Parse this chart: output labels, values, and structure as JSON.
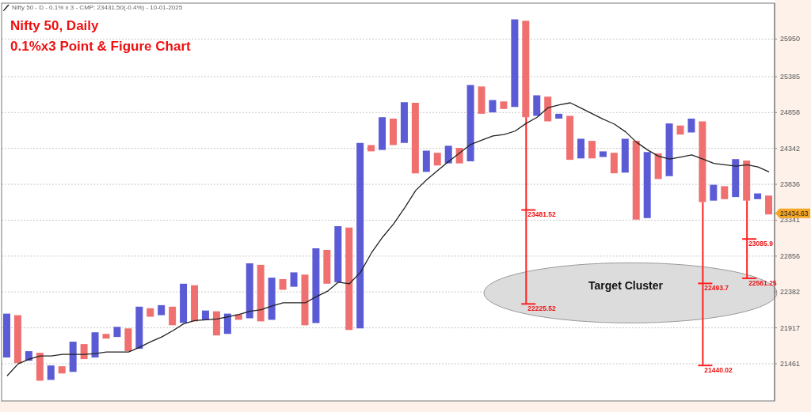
{
  "chart_data": {
    "type": "bar",
    "title": "Nifty 50, Daily",
    "subtitle": "0.1%x3 Point & Figure Chart",
    "categories": [
      null,
      null,
      null,
      null,
      null,
      null,
      null,
      null,
      null,
      null,
      null,
      null,
      null,
      null,
      null,
      null,
      null,
      null,
      null,
      null,
      null,
      null,
      null,
      null,
      null,
      null,
      null,
      null,
      null,
      null,
      null,
      null,
      null,
      null,
      null,
      null,
      null,
      null,
      null,
      null,
      null,
      null,
      null,
      null,
      null,
      null,
      null,
      null,
      null,
      null,
      null,
      null,
      null,
      null,
      null,
      null,
      null,
      null,
      null,
      null,
      null,
      null,
      null,
      null,
      null,
      null,
      null,
      null,
      null,
      null
    ],
    "ylim": [
      21000,
      26500
    ],
    "log": true,
    "yticks": [
      21461,
      21917,
      22382,
      22856,
      23341,
      {
        "value": 23434.63,
        "label": "23434.63"
      },
      23836,
      24342,
      24858,
      25385,
      25950
    ],
    "grid": "y",
    "tick_labels": "y",
    "series": [
      {
        "base": [
          21540,
          21470,
          21500,
          21250,
          21260,
          21340,
          21360,
          21520,
          21540,
          21780,
          21800,
          21620,
          21650,
          22060,
          22080,
          21950,
          21980,
          22000,
          22020,
          21820,
          21840,
          22020,
          22040,
          22000,
          22020,
          22410,
          22450,
          21950,
          21980,
          22490,
          22510,
          21890,
          21910,
          24300,
          24320,
          24390,
          24420,
          23990,
          24010,
          24100,
          24130,
          24130,
          24160,
          24840,
          24860,
          24910,
          24940,
          24790,
          24810,
          24730,
          24770,
          24180,
          24200,
          24200,
          24220,
          23990,
          24000,
          23350,
          23370,
          23910,
          23950,
          24540,
          24570,
          23590,
          23610,
          23630,
          23660,
          23610,
          23630,
          23420
        ],
        "values": [
          560,
          610,
          120,
          350,
          180,
          90,
          380,
          190,
          320,
          60,
          130,
          290,
          540,
          110,
          130,
          240,
          510,
          470,
          120,
          310,
          260,
          70,
          720,
          740,
          550,
          140,
          190,
          660,
          980,
          450,
          750,
          1350,
          2510,
          90,
          470,
          380,
          590,
          1010,
          300,
          180,
          250,
          220,
          1100,
          400,
          180,
          110,
          1310,
          1440,
          300,
          360,
          70,
          630,
          280,
          250,
          80,
          290,
          480,
          1100,
          920,
          360,
          750,
          130,
          200,
          1140,
          220,
          180,
          530,
          560,
          80,
          260
        ],
        "colors": [
          "#5b5bd6",
          "#f07070",
          "#5b5bd6",
          "#f07070",
          "#5b5bd6",
          "#f07070",
          "#5b5bd6",
          "#f07070",
          "#5b5bd6",
          "#f07070",
          "#5b5bd6",
          "#f07070",
          "#5b5bd6",
          "#f07070",
          "#5b5bd6",
          "#f07070",
          "#5b5bd6",
          "#f07070",
          "#5b5bd6",
          "#f07070",
          "#5b5bd6",
          "#f07070",
          "#5b5bd6",
          "#f07070",
          "#5b5bd6",
          "#f07070",
          "#5b5bd6",
          "#f07070",
          "#5b5bd6",
          "#f07070",
          "#5b5bd6",
          "#f07070",
          "#5b5bd6",
          "#f07070",
          "#5b5bd6",
          "#f07070",
          "#5b5bd6",
          "#f07070",
          "#5b5bd6",
          "#f07070",
          "#5b5bd6",
          "#f07070",
          "#5b5bd6",
          "#f07070",
          "#5b5bd6",
          "#f07070",
          "#5b5bd6",
          "#f07070",
          "#5b5bd6",
          "#f07070",
          "#5b5bd6",
          "#f07070",
          "#5b5bd6",
          "#f07070",
          "#5b5bd6",
          "#f07070",
          "#5b5bd6",
          "#f07070",
          "#5b5bd6",
          "#f07070",
          "#5b5bd6",
          "#f07070",
          "#5b5bd6",
          "#f07070",
          "#5b5bd6",
          "#f07070",
          "#5b5bd6",
          "#f07070",
          "#5b5bd6",
          "#f07070"
        ]
      },
      {
        "type": "line",
        "color": "#222222",
        "values": [
          21310,
          21460,
          21520,
          21560,
          21560,
          21580,
          21580,
          21580,
          21590,
          21610,
          21610,
          21610,
          21670,
          21740,
          21800,
          21880,
          21970,
          22010,
          22020,
          22030,
          22060,
          22090,
          22130,
          22150,
          22200,
          22240,
          22240,
          22240,
          22320,
          22390,
          22510,
          22490,
          22640,
          22900,
          23110,
          23290,
          23510,
          23750,
          23900,
          24030,
          24160,
          24280,
          24400,
          24460,
          24520,
          24540,
          24590,
          24700,
          24790,
          24930,
          24970,
          25000,
          24920,
          24840,
          24760,
          24690,
          24580,
          24430,
          24320,
          24230,
          24190,
          24220,
          24250,
          24190,
          24130,
          24110,
          24090,
          24110,
          24080,
          24010
        ]
      },
      {
        "type": "bar",
        "color": "#ff2020",
        "base": [
          null,
          null,
          null,
          null,
          null,
          null,
          null,
          null,
          null,
          null,
          null,
          null,
          null,
          null,
          null,
          null,
          null,
          null,
          null,
          null,
          null,
          null,
          null,
          null,
          null,
          null,
          null,
          null,
          null,
          null,
          null,
          null,
          null,
          null,
          null,
          null,
          null,
          null,
          null,
          null,
          null,
          null,
          null,
          null,
          null,
          null,
          null,
          23481.52,
          null,
          null,
          null,
          null,
          null,
          null,
          null,
          null,
          null,
          null,
          null,
          null,
          null,
          null,
          null,
          22493.7,
          null,
          null,
          null,
          23085.9,
          null,
          null
        ],
        "values": [
          null,
          null,
          null,
          null,
          null,
          null,
          null,
          null,
          null,
          null,
          null,
          null,
          null,
          null,
          null,
          null,
          null,
          null,
          null,
          null,
          null,
          null,
          null,
          null,
          null,
          null,
          null,
          null,
          null,
          null,
          null,
          null,
          null,
          null,
          null,
          null,
          null,
          null,
          null,
          null,
          null,
          null,
          null,
          null,
          null,
          null,
          null,
          1308.48,
          null,
          null,
          null,
          null,
          null,
          null,
          null,
          null,
          null,
          null,
          null,
          null,
          null,
          null,
          null,
          1096.3,
          null,
          null,
          null,
          524.1,
          null,
          null
        ]
      },
      {
        "type": "bar",
        "color": "#ff2020",
        "base": [
          null,
          null,
          null,
          null,
          null,
          null,
          null,
          null,
          null,
          null,
          null,
          null,
          null,
          null,
          null,
          null,
          null,
          null,
          null,
          null,
          null,
          null,
          null,
          null,
          null,
          null,
          null,
          null,
          null,
          null,
          null,
          null,
          null,
          null,
          null,
          null,
          null,
          null,
          null,
          null,
          null,
          null,
          null,
          null,
          null,
          null,
          null,
          22225.52,
          null,
          null,
          null,
          null,
          null,
          null,
          null,
          null,
          null,
          null,
          null,
          null,
          null,
          null,
          null,
          21440.02,
          null,
          null,
          null,
          22561.25,
          null,
          null
        ],
        "values": [
          null,
          null,
          null,
          null,
          null,
          null,
          null,
          null,
          null,
          null,
          null,
          null,
          null,
          null,
          null,
          null,
          null,
          null,
          null,
          null,
          null,
          null,
          null,
          null,
          null,
          null,
          null,
          null,
          null,
          null,
          null,
          null,
          null,
          null,
          null,
          null,
          null,
          null,
          null,
          null,
          null,
          null,
          null,
          null,
          null,
          null,
          null,
          1256,
          null,
          null,
          null,
          null,
          null,
          null,
          null,
          null,
          null,
          null,
          null,
          null,
          null,
          null,
          null,
          1053.68,
          null,
          null,
          null,
          524.65,
          null,
          null
        ]
      }
    ],
    "annotations": [
      "Nifty 50 - D - 0.1% x 3 - CMP: 23431.50(-0.4%) - 10-01-2025",
      "Target Cluster",
      "23481.52",
      "22225.52",
      "22493.7",
      "21440.02",
      "23085.9",
      "22561.25"
    ]
  }
}
